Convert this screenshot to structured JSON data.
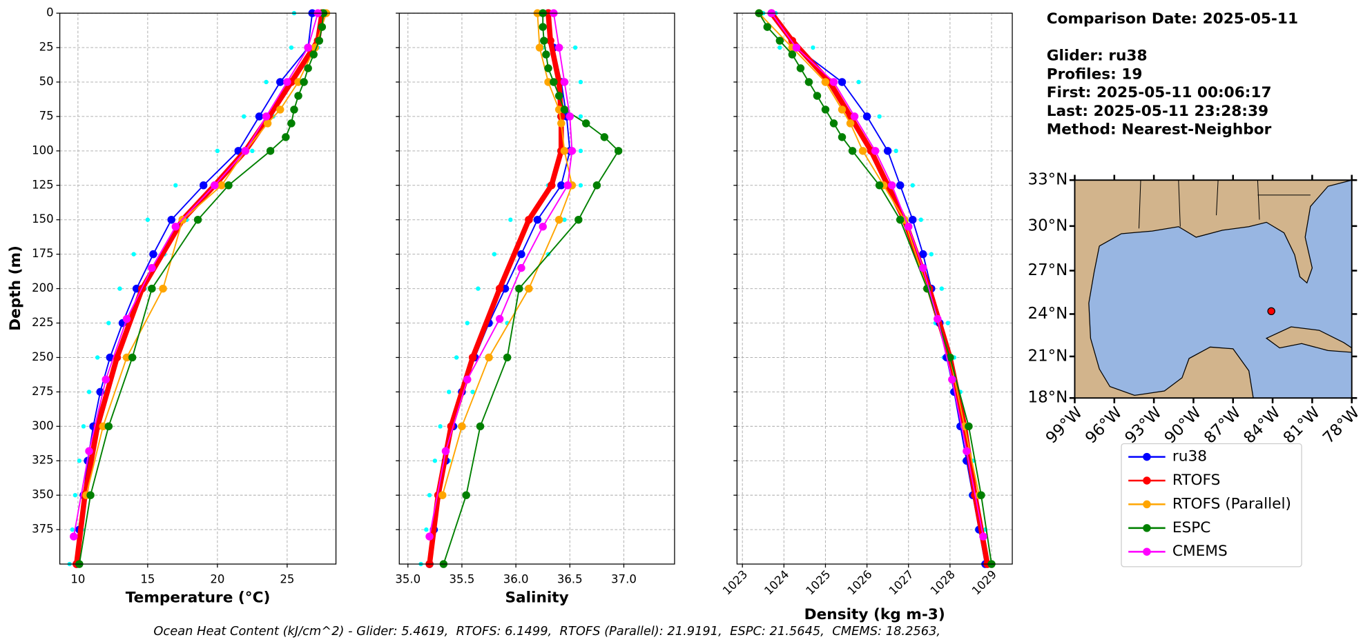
{
  "chart_data": {
    "type": "profile",
    "ylabel": "Depth (m)",
    "ylim": [
      0,
      400
    ],
    "yreverse": true,
    "yticks": [
      0,
      25,
      50,
      75,
      100,
      125,
      150,
      175,
      200,
      225,
      250,
      275,
      300,
      325,
      350,
      375
    ],
    "grid": true,
    "panels": [
      {
        "xlabel": "Temperature (°C)",
        "xlim": [
          8.7,
          28.5
        ],
        "xticks": [
          10,
          15,
          20,
          25
        ]
      },
      {
        "xlabel": "Salinity",
        "xlim": [
          34.92,
          37.47
        ],
        "xticks": [
          {
            "value": 35,
            "label": "35.0"
          },
          35.5,
          {
            "value": 36,
            "label": "36.0"
          },
          36.5,
          {
            "value": 37,
            "label": "37.0"
          }
        ]
      },
      {
        "xlabel": "Density (kg m-3)",
        "xlim": [
          1022.87,
          1029.5
        ],
        "xticks": [
          1023,
          1024,
          1025,
          1026,
          1027,
          1028,
          1029
        ],
        "xtick_rotation": 45
      }
    ],
    "scatter": {
      "color": "#00ffff",
      "depth": [
        0,
        25,
        50,
        75,
        100,
        125,
        150,
        175,
        200,
        225,
        250,
        275,
        300,
        325,
        350,
        375,
        400
      ],
      "profiles": [
        {
          "values": [
            [
              25.5,
              25.3,
              23.5,
              21.9,
              20.0,
              17.0,
              15.0,
              14.0,
              13.0,
              12.2,
              11.4,
              10.8,
              10.4,
              10.1,
              9.8,
              9.6,
              9.4
            ],
            [
              36.2,
              36.25,
              36.35,
              36.4,
              36.4,
              36.3,
              35.95,
              35.8,
              35.65,
              35.55,
              35.45,
              35.38,
              35.3,
              35.25,
              35.2,
              35.17,
              35.12
            ],
            [
              1023.5,
              1023.9,
              1025.0,
              1025.6,
              1026.2,
              1026.6,
              1026.9,
              1027.2,
              1027.45,
              1027.65,
              1027.85,
              1028.05,
              1028.2,
              1028.35,
              1028.5,
              1028.65,
              1028.8
            ]
          ]
        },
        {
          "values": [
            [
              27.8,
              27.2,
              25.8,
              24.0,
              22.5,
              20.3,
              17.8,
              16.2,
              14.8,
              13.7,
              12.8,
              12.0,
              11.4,
              10.9,
              10.6,
              10.3,
              10.1
            ],
            [
              36.35,
              36.55,
              36.6,
              36.6,
              36.6,
              36.6,
              36.45,
              36.3,
              36.1,
              35.92,
              35.75,
              35.6,
              35.48,
              35.38,
              35.3,
              35.26,
              35.22
            ],
            [
              1023.8,
              1024.7,
              1025.8,
              1026.3,
              1026.7,
              1027.1,
              1027.3,
              1027.55,
              1027.8,
              1027.95,
              1028.1,
              1028.25,
              1028.4,
              1028.55,
              1028.7,
              1028.85,
              1028.95
            ]
          ]
        }
      ]
    },
    "series": [
      {
        "name": "ru38",
        "color": "#0000ff",
        "linewidth": 1.5,
        "depth": [
          0,
          25,
          50,
          75,
          100,
          125,
          150,
          175,
          200,
          225,
          250,
          275,
          300,
          325,
          350,
          375,
          400
        ],
        "values": [
          [
            26.8,
            26.5,
            24.5,
            23.0,
            21.5,
            19.0,
            16.7,
            15.4,
            14.2,
            13.2,
            12.3,
            11.6,
            11.1,
            10.7,
            10.4,
            10.1,
            9.9
          ],
          [
            36.3,
            36.35,
            36.42,
            36.47,
            36.5,
            36.42,
            36.2,
            36.05,
            35.9,
            35.75,
            35.62,
            35.5,
            35.42,
            35.35,
            35.29,
            35.24,
            35.2
          ],
          [
            1023.7,
            1024.3,
            1025.4,
            1026.0,
            1026.5,
            1026.8,
            1027.1,
            1027.35,
            1027.55,
            1027.75,
            1027.92,
            1028.1,
            1028.25,
            1028.4,
            1028.55,
            1028.7,
            1028.85
          ]
        ]
      },
      {
        "name": "RTOFS",
        "color": "#ff0000",
        "linewidth": 6,
        "depth": [
          0,
          20,
          50,
          75,
          100,
          125,
          150,
          200,
          250,
          300,
          350,
          400
        ],
        "values": [
          [
            27.5,
            27.2,
            25.3,
            23.7,
            22.0,
            19.8,
            17.5,
            14.6,
            12.8,
            11.4,
            10.5,
            9.9
          ],
          [
            36.3,
            36.32,
            36.4,
            36.42,
            36.42,
            36.33,
            36.12,
            35.85,
            35.6,
            35.4,
            35.28,
            35.2
          ],
          [
            1023.7,
            1024.2,
            1025.1,
            1025.6,
            1026.1,
            1026.5,
            1026.9,
            1027.5,
            1028.0,
            1028.35,
            1028.6,
            1028.9
          ]
        ]
      },
      {
        "name": "RTOFS (Parallel)",
        "color": "#ffa500",
        "linewidth": 1.5,
        "depth": [
          0,
          25,
          50,
          70,
          80,
          100,
          125,
          150,
          200,
          250,
          300,
          350
        ],
        "values": [
          [
            27.8,
            27.0,
            25.8,
            24.5,
            23.6,
            22.0,
            20.3,
            17.5,
            16.1,
            13.5,
            11.8,
            10.6
          ],
          [
            36.2,
            36.22,
            36.3,
            36.4,
            36.42,
            36.45,
            36.52,
            36.4,
            36.12,
            35.75,
            35.5,
            35.32
          ],
          [
            1023.4,
            1024.2,
            1025.0,
            1025.4,
            1025.6,
            1025.9,
            1026.4,
            1026.9,
            1027.45,
            1028.0,
            1028.35,
            1028.7
          ]
        ]
      },
      {
        "name": "ESPC",
        "color": "#008000",
        "linewidth": 1.5,
        "depth": [
          0,
          10,
          20,
          30,
          40,
          50,
          60,
          70,
          80,
          90,
          100,
          125,
          150,
          200,
          250,
          300,
          350,
          400
        ],
        "values": [
          [
            27.6,
            27.5,
            27.3,
            26.9,
            26.5,
            26.2,
            25.8,
            25.5,
            25.3,
            24.9,
            23.8,
            20.8,
            18.6,
            15.3,
            13.9,
            12.2,
            10.9,
            10.1
          ],
          [
            36.25,
            36.25,
            36.26,
            36.28,
            36.3,
            36.35,
            36.4,
            36.45,
            36.65,
            36.82,
            36.95,
            36.75,
            36.58,
            36.03,
            35.92,
            35.67,
            35.54,
            35.33
          ],
          [
            1023.4,
            1023.6,
            1023.9,
            1024.2,
            1024.4,
            1024.6,
            1024.8,
            1025.0,
            1025.2,
            1025.4,
            1025.65,
            1026.3,
            1026.8,
            1027.45,
            1028.0,
            1028.45,
            1028.75,
            1029.0
          ]
        ]
      },
      {
        "name": "CMEMS",
        "color": "#ff00ff",
        "linewidth": 1.5,
        "depth": [
          0,
          25,
          50,
          75,
          100,
          125,
          155,
          185,
          222,
          266,
          318,
          380
        ],
        "values": [
          [
            27.2,
            26.5,
            25.0,
            23.5,
            22.0,
            19.8,
            17.0,
            15.3,
            13.5,
            12.0,
            10.8,
            9.7
          ],
          [
            36.35,
            36.4,
            36.45,
            36.5,
            36.52,
            36.48,
            36.25,
            36.05,
            35.85,
            35.55,
            35.35,
            35.2
          ],
          [
            1023.7,
            1024.3,
            1025.2,
            1025.7,
            1026.2,
            1026.6,
            1027.0,
            1027.35,
            1027.7,
            1028.05,
            1028.4,
            1028.8
          ]
        ]
      }
    ],
    "info": [
      "Comparison Date: 2025-05-11",
      "Glider: ru38",
      "Profiles: 19",
      "First: 2025-05-11 00:06:17",
      "Last: 2025-05-11 23:28:39",
      "Method: Nearest-Neighbor"
    ],
    "map": {
      "xlim": [
        -99,
        -78
      ],
      "ylim": [
        18,
        33
      ],
      "xticks": [
        {
          "value": -99,
          "label": "99°W"
        },
        {
          "value": -96,
          "label": "96°W"
        },
        {
          "value": -93,
          "label": "93°W"
        },
        {
          "value": -90,
          "label": "90°W"
        },
        {
          "value": -87,
          "label": "87°W"
        },
        {
          "value": -84,
          "label": "84°W"
        },
        {
          "value": -81,
          "label": "81°W"
        },
        {
          "value": -78,
          "label": "78°W"
        }
      ],
      "yticks": [
        {
          "value": 18,
          "label": "18°N"
        },
        {
          "value": 21,
          "label": "21°N"
        },
        {
          "value": 24,
          "label": "24°N"
        },
        {
          "value": 27,
          "label": "27°N"
        },
        {
          "value": 30,
          "label": "30°N"
        },
        {
          "value": 33,
          "label": "33°N"
        }
      ],
      "glider": {
        "lon": -84.1,
        "lat": 24.2,
        "color": "#ff0000"
      }
    },
    "footer": "Ocean Heat Content (kJ/cm^2) - Glider: 5.4619,  RTOFS: 6.1499,  RTOFS (Parallel): 21.9191,  ESPC: 21.5645,  CMEMS: 18.2563,"
  }
}
